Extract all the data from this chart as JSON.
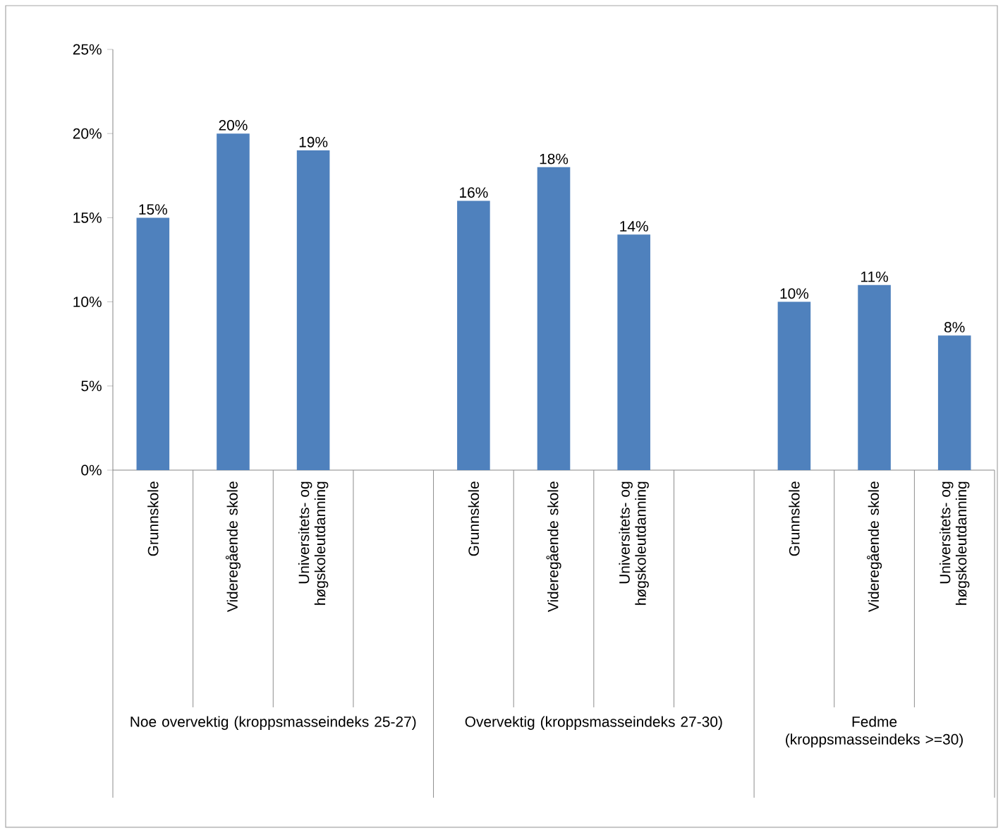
{
  "chart_data": {
    "type": "bar",
    "categories": [
      "Grunnskole",
      "Videregående skole",
      "Universitets- og høgskoleutdanning",
      null,
      "Grunnskole",
      "Videregående skole",
      "Universitets- og høgskoleutdanning",
      null,
      "Grunnskole",
      "Videregående skole",
      "Universitets- og høgskoleutdanning"
    ],
    "values": [
      15,
      20,
      19,
      null,
      16,
      18,
      14,
      null,
      10,
      11,
      8
    ],
    "value_labels": [
      "15%",
      "20%",
      "19%",
      null,
      "16%",
      "18%",
      "14%",
      null,
      "10%",
      "11%",
      "8%"
    ],
    "color": "#4f81bd",
    "ylim": [
      0,
      25
    ],
    "yticks": [
      {
        "value": 0,
        "label": "0%"
      },
      {
        "value": 5,
        "label": "5%"
      },
      {
        "value": 10,
        "label": "10%"
      },
      {
        "value": 15,
        "label": "15%"
      },
      {
        "value": 20,
        "label": "20%"
      },
      {
        "value": 25,
        "label": "25%"
      }
    ],
    "grid": false,
    "annotations": [
      "Noe overvektig (kroppsmasseindeks 25-27)",
      "Overvektig (kroppsmasseindeks 27-30)",
      "Fedme (kroppsmasseindeks >=30)"
    ]
  }
}
